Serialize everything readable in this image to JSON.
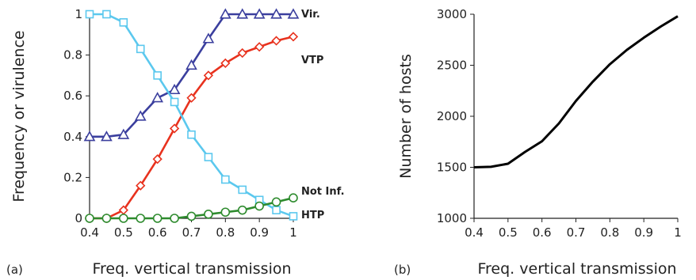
{
  "panels": {
    "a": {
      "letter": "(a)"
    },
    "b": {
      "letter": "(b)"
    }
  },
  "chart_data": [
    {
      "type": "line",
      "xlabel": "Freq. vertical transmission",
      "ylabel": "Frequency or virulence",
      "xlim": [
        0.4,
        1.0
      ],
      "ylim": [
        0,
        1
      ],
      "xticks": [
        "0.4",
        "0.5",
        "0.6",
        "0.7",
        "0.8",
        "0.9",
        "1"
      ],
      "yticks": [
        "0",
        "0.2",
        "0.4",
        "0.6",
        "0.8",
        "1"
      ],
      "x": [
        0.4,
        0.45,
        0.5,
        0.55,
        0.6,
        0.65,
        0.7,
        0.75,
        0.8,
        0.85,
        0.9,
        0.95,
        1.0
      ],
      "grid": false,
      "series": [
        {
          "name": "Vir.",
          "color": "#3b3f9e",
          "marker": "triangle",
          "values": [
            0.4,
            0.4,
            0.41,
            0.5,
            0.59,
            0.63,
            0.75,
            0.88,
            1.0,
            1.0,
            1.0,
            1.0,
            1.0
          ]
        },
        {
          "name": "VTP",
          "color": "#e8321e",
          "marker": "diamond",
          "values": [
            0.0,
            0.0,
            0.04,
            0.16,
            0.29,
            0.44,
            0.59,
            0.7,
            0.76,
            0.81,
            0.84,
            0.87,
            0.89
          ]
        },
        {
          "name": "HTP",
          "color": "#5bc8ee",
          "marker": "square",
          "values": [
            1.0,
            1.0,
            0.96,
            0.83,
            0.7,
            0.57,
            0.41,
            0.3,
            0.19,
            0.14,
            0.09,
            0.04,
            0.01
          ]
        },
        {
          "name": "Not Inf.",
          "color": "#2e8b2e",
          "marker": "circle",
          "values": [
            0.0,
            0.0,
            0.0,
            0.0,
            0.0,
            0.0,
            0.01,
            0.02,
            0.03,
            0.04,
            0.06,
            0.08,
            0.1
          ]
        }
      ]
    },
    {
      "type": "line",
      "xlabel": "Freq. vertical transmission",
      "ylabel": "Number of hosts",
      "xlim": [
        0.4,
        1.0
      ],
      "ylim": [
        1000,
        3000
      ],
      "xticks": [
        "0.4",
        "0.5",
        "0.6",
        "0.7",
        "0.8",
        "0.9",
        "1"
      ],
      "yticks": [
        "1000",
        "1500",
        "2000",
        "2500",
        "3000"
      ],
      "grid": false,
      "x": [
        0.4,
        0.45,
        0.5,
        0.55,
        0.6,
        0.65,
        0.7,
        0.75,
        0.8,
        0.85,
        0.9,
        0.95,
        1.0
      ],
      "series": [
        {
          "color": "#000000",
          "values": [
            1500,
            1505,
            1535,
            1650,
            1755,
            1930,
            2150,
            2340,
            2510,
            2650,
            2770,
            2880,
            2980
          ]
        }
      ]
    }
  ]
}
